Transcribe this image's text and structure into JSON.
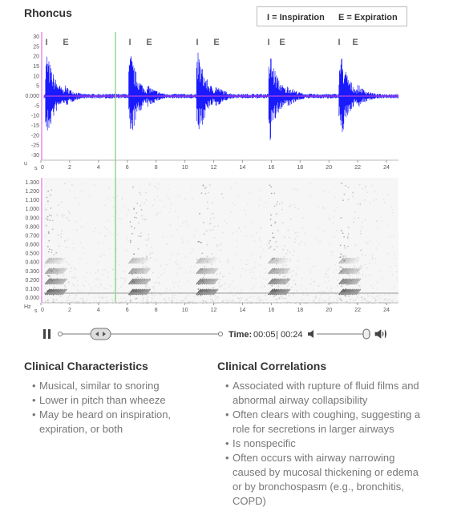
{
  "header": {
    "title": "Rhoncus"
  },
  "legend": {
    "items": [
      "I = Inspiration",
      "E = Expiration"
    ]
  },
  "waveform": {
    "markers": [
      "I",
      "E",
      "I",
      "E",
      "I",
      "E",
      "I",
      "E",
      "I",
      "E"
    ],
    "y_labels": [
      "30",
      "25",
      "20",
      "15",
      "10",
      "5",
      "0.000",
      "-5",
      "-10",
      "-15",
      "-20",
      "-25",
      "-30"
    ],
    "y_unit": "u",
    "x_unit": "s",
    "x_labels": [
      "0",
      "2",
      "4",
      "6",
      "8",
      "10",
      "12",
      "14",
      "16",
      "18",
      "20",
      "22",
      "24"
    ]
  },
  "spectrogram": {
    "y_labels": [
      "1.300",
      "1.200",
      "1.100",
      "1.000",
      "0.900",
      "0.800",
      "0.700",
      "0.600",
      "0.500",
      "0.400",
      "0.300",
      "0.200",
      "0.100",
      "0.000"
    ],
    "y_unit": "Hz",
    "x_unit": "s",
    "x_labels": [
      "0",
      "2",
      "4",
      "6",
      "8",
      "10",
      "12",
      "14",
      "16",
      "18",
      "20",
      "22",
      "24"
    ]
  },
  "player": {
    "time_label": "Time:",
    "current": "00:05",
    "separator": "|",
    "total": "00:24"
  },
  "characteristics": {
    "heading": "Clinical Characteristics",
    "items": [
      "Musical, similar to snoring",
      "Lower in pitch than wheeze",
      "May be heard on inspiration, expiration, or both"
    ]
  },
  "correlations": {
    "heading": "Clinical Correlations",
    "items": [
      "Associated with rupture of fluid films and abnormal airway collapsibility",
      "Often clears with coughing, suggesting a role for secretions in larger airways",
      "Is nonspecific",
      "Often occurs with airway narrowing caused by mucosal thickening or edema or by bronchospasm (e.g., bronchitis, COPD)"
    ]
  }
}
